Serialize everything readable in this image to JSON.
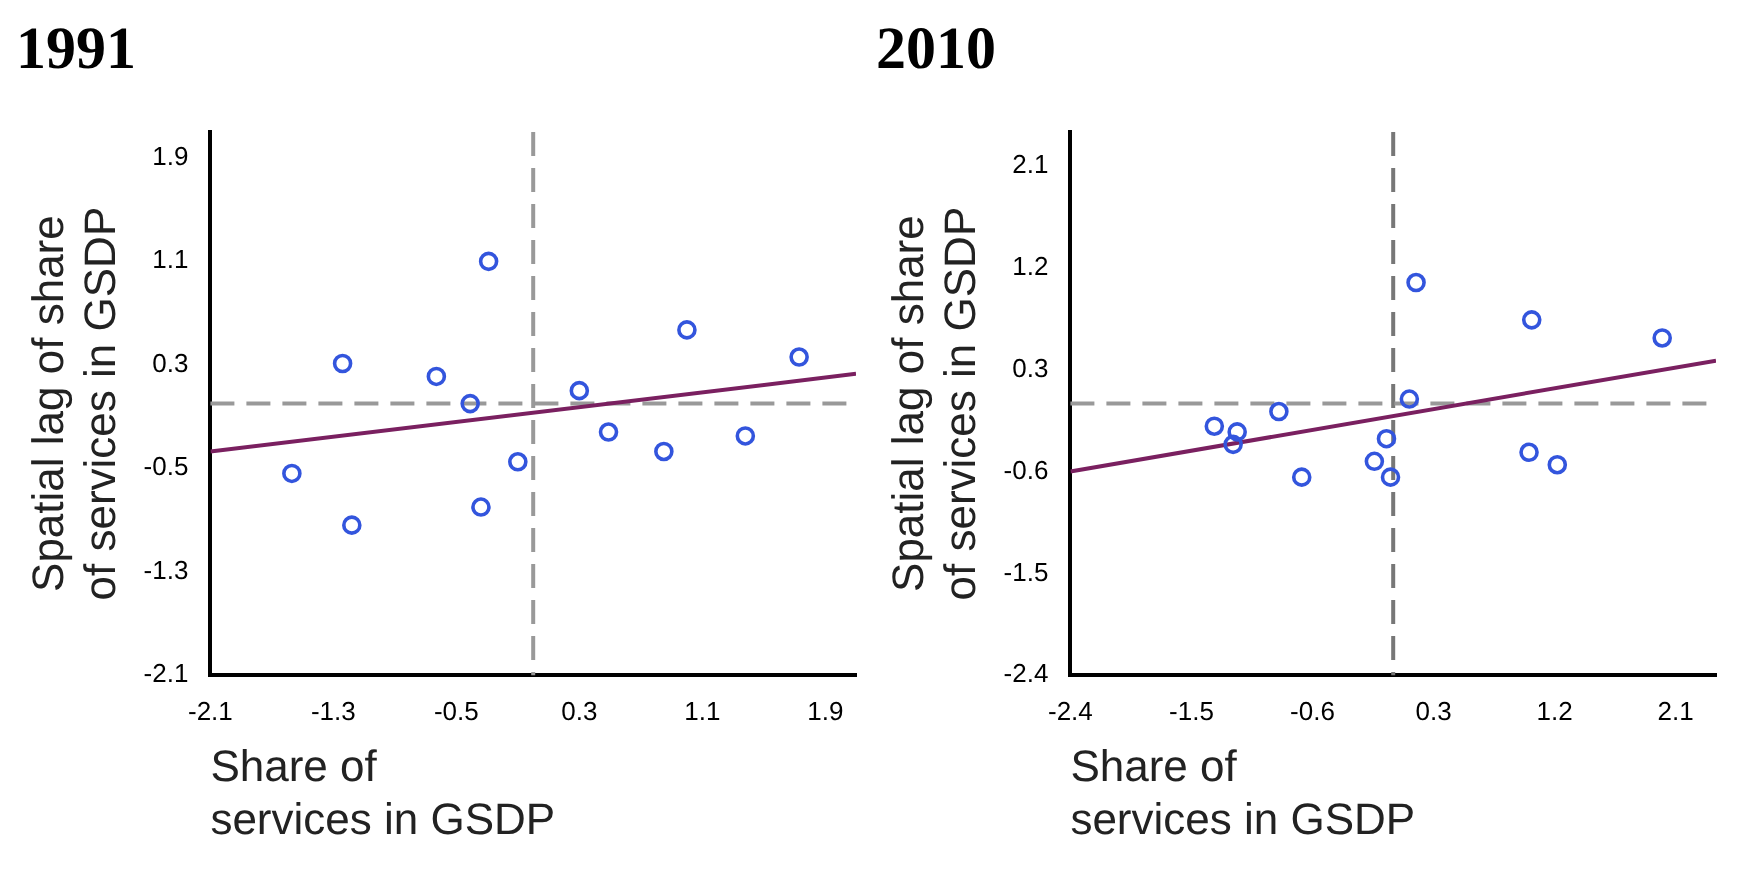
{
  "chart_data": [
    {
      "type": "scatter",
      "title": "1991",
      "xlabel": "Share of services in GSDP",
      "ylabel": "Spatial lag of share of services in GSDP",
      "xlim": [
        -2.1,
        2.1
      ],
      "ylim": [
        -2.1,
        2.1
      ],
      "xticks": [
        -2.1,
        -1.3,
        -0.5,
        0.3,
        1.1,
        1.9
      ],
      "yticks": [
        -2.1,
        -1.3,
        -0.5,
        0.3,
        1.1,
        1.9
      ],
      "grid": false,
      "legend": false,
      "ref_lines": [
        {
          "axis": "x",
          "value": 0,
          "color": "#999999",
          "line_style": "dashed"
        },
        {
          "axis": "y",
          "value": 0,
          "color": "#999999",
          "line_style": "dashed"
        }
      ],
      "series": [
        {
          "marker": "circle",
          "color": "#3355dd",
          "x": [
            -1.57,
            -1.24,
            -1.18,
            -0.63,
            -0.41,
            -0.29,
            -0.34,
            -0.1,
            0.3,
            0.49,
            0.85,
            1.0,
            1.38,
            1.73
          ],
          "values": [
            -0.54,
            0.31,
            -0.94,
            0.21,
            0.0,
            1.1,
            -0.8,
            -0.45,
            0.1,
            -0.22,
            -0.37,
            0.57,
            -0.25,
            0.36
          ]
        },
        {
          "type": "line",
          "color": "#7a2060",
          "x": [
            -2.1,
            2.1
          ],
          "values": [
            -0.37,
            0.23
          ]
        }
      ]
    },
    {
      "type": "scatter",
      "title": "2010",
      "xlabel": "Share of services in GSDP",
      "ylabel": "Spatial lag of share of services in GSDP",
      "xlim": [
        -2.4,
        2.4
      ],
      "ylim": [
        -2.4,
        2.4
      ],
      "xticks": [
        -2.4,
        -1.5,
        -0.6,
        0.3,
        1.2,
        2.1
      ],
      "yticks": [
        -2.4,
        -1.5,
        -0.6,
        0.3,
        1.2,
        2.1
      ],
      "grid": false,
      "legend": false,
      "ref_lines": [
        {
          "axis": "x",
          "value": 0,
          "color": "#777777",
          "line_style": "dashed"
        },
        {
          "axis": "y",
          "value": 0,
          "color": "#999999",
          "line_style": "dashed"
        }
      ],
      "series": [
        {
          "marker": "circle",
          "color": "#3355dd",
          "x": [
            -1.33,
            -1.16,
            -1.19,
            -0.85,
            -0.68,
            -0.14,
            -0.05,
            -0.02,
            0.12,
            0.17,
            1.03,
            1.01,
            1.22,
            2.0
          ],
          "values": [
            -0.2,
            -0.25,
            -0.36,
            -0.07,
            -0.65,
            -0.51,
            -0.31,
            -0.65,
            0.04,
            1.07,
            0.74,
            -0.43,
            -0.54,
            0.58
          ]
        },
        {
          "type": "line",
          "color": "#7a2060",
          "x": [
            -2.4,
            2.4
          ],
          "values": [
            -0.6,
            0.38
          ]
        }
      ]
    }
  ]
}
